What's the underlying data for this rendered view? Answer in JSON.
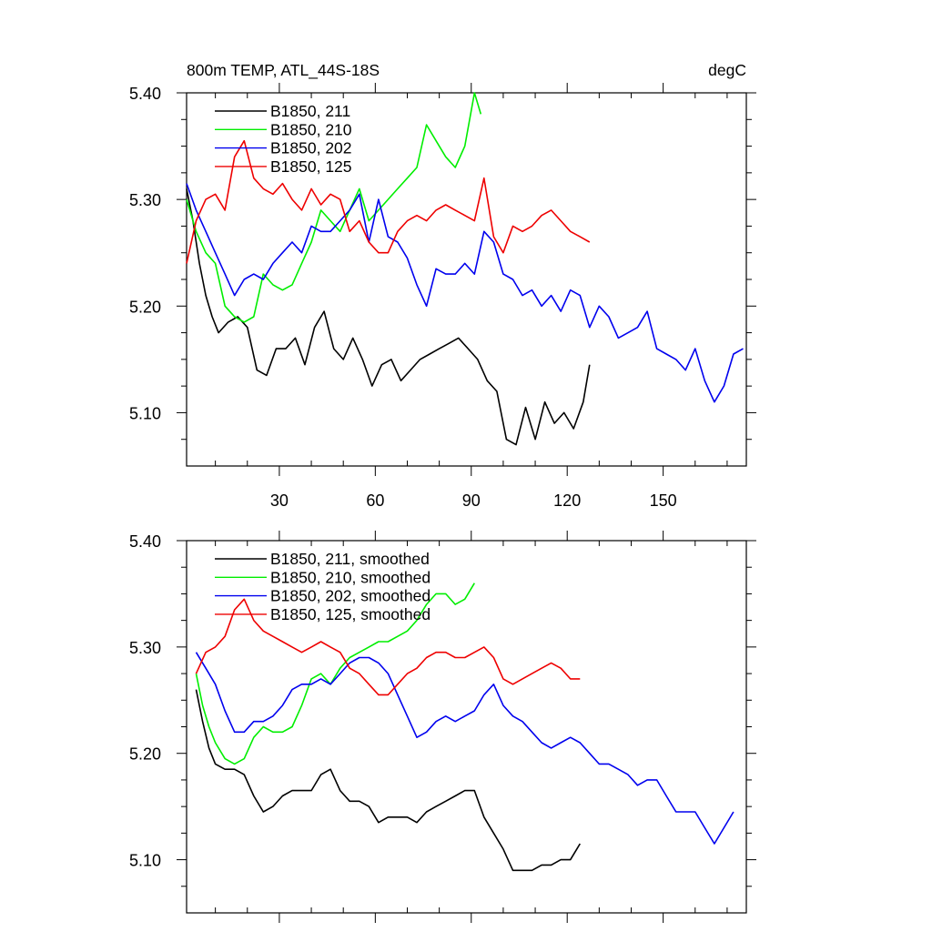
{
  "figure": {
    "title": "800m TEMP, ATL_44S-18S",
    "units": "degC"
  },
  "chart_data": [
    {
      "type": "line",
      "panel": "top",
      "title": "800m TEMP, ATL_44S-18S",
      "units": "degC",
      "xlim": [
        1,
        176
      ],
      "ylim": [
        5.05,
        5.4
      ],
      "xticks": [
        30,
        60,
        90,
        120,
        150
      ],
      "xtick_labels": [
        "30",
        "60",
        "90",
        "120",
        "150"
      ],
      "yticks": [
        5.1,
        5.2,
        5.3,
        5.4
      ],
      "ytick_labels": [
        "5.10",
        "5.20",
        "5.30",
        "5.40"
      ],
      "legend_position": "top-left",
      "series": [
        {
          "name": "B1850, 211",
          "color": "#000000",
          "x": [
            1,
            3,
            5,
            7,
            9,
            11,
            14,
            17,
            20,
            23,
            26,
            29,
            32,
            35,
            38,
            41,
            44,
            47,
            50,
            53,
            56,
            59,
            62,
            65,
            68,
            71,
            74,
            77,
            80,
            83,
            86,
            89,
            92,
            95,
            98,
            101,
            104,
            107,
            110,
            113,
            116,
            119,
            122,
            125,
            127
          ],
          "y": [
            5.31,
            5.28,
            5.24,
            5.21,
            5.19,
            5.175,
            5.185,
            5.19,
            5.18,
            5.14,
            5.135,
            5.16,
            5.16,
            5.17,
            5.145,
            5.18,
            5.195,
            5.16,
            5.15,
            5.17,
            5.15,
            5.125,
            5.145,
            5.15,
            5.13,
            5.14,
            5.15,
            5.155,
            5.16,
            5.165,
            5.17,
            5.16,
            5.15,
            5.13,
            5.12,
            5.075,
            5.07,
            5.105,
            5.075,
            5.11,
            5.09,
            5.1,
            5.085,
            5.11,
            5.145
          ]
        },
        {
          "name": "B1850, 210",
          "color": "#00ee00",
          "x": [
            1,
            4,
            7,
            10,
            13,
            16,
            19,
            22,
            25,
            28,
            31,
            34,
            37,
            40,
            43,
            46,
            49,
            52,
            55,
            58,
            61,
            64,
            67,
            70,
            73,
            76,
            79,
            82,
            85,
            88,
            91,
            93
          ],
          "y": [
            5.3,
            5.27,
            5.25,
            5.24,
            5.2,
            5.19,
            5.185,
            5.19,
            5.23,
            5.22,
            5.215,
            5.22,
            5.24,
            5.26,
            5.29,
            5.28,
            5.27,
            5.29,
            5.31,
            5.28,
            5.29,
            5.3,
            5.31,
            5.32,
            5.33,
            5.37,
            5.355,
            5.34,
            5.33,
            5.35,
            5.4,
            5.38
          ]
        },
        {
          "name": "B1850, 202",
          "color": "#0000ee",
          "x": [
            1,
            4,
            7,
            10,
            13,
            16,
            19,
            22,
            25,
            28,
            31,
            34,
            37,
            40,
            43,
            46,
            49,
            52,
            55,
            58,
            61,
            64,
            67,
            70,
            73,
            76,
            79,
            82,
            85,
            88,
            91,
            94,
            97,
            100,
            103,
            106,
            109,
            112,
            115,
            118,
            121,
            124,
            127,
            130,
            133,
            136,
            139,
            142,
            145,
            148,
            151,
            154,
            157,
            160,
            163,
            166,
            169,
            172,
            175
          ],
          "y": [
            5.315,
            5.29,
            5.27,
            5.25,
            5.23,
            5.21,
            5.225,
            5.23,
            5.225,
            5.24,
            5.25,
            5.26,
            5.25,
            5.275,
            5.27,
            5.27,
            5.28,
            5.29,
            5.305,
            5.26,
            5.3,
            5.265,
            5.26,
            5.245,
            5.22,
            5.2,
            5.235,
            5.23,
            5.23,
            5.24,
            5.23,
            5.27,
            5.26,
            5.23,
            5.225,
            5.21,
            5.215,
            5.2,
            5.21,
            5.195,
            5.215,
            5.21,
            5.18,
            5.2,
            5.19,
            5.17,
            5.175,
            5.18,
            5.195,
            5.16,
            5.155,
            5.15,
            5.14,
            5.16,
            5.13,
            5.11,
            5.125,
            5.155,
            5.16
          ]
        },
        {
          "name": "B1850, 125",
          "color": "#ee0000",
          "x": [
            1,
            4,
            7,
            10,
            13,
            16,
            19,
            22,
            25,
            28,
            31,
            34,
            37,
            40,
            43,
            46,
            49,
            52,
            55,
            58,
            61,
            64,
            67,
            70,
            73,
            76,
            79,
            82,
            85,
            88,
            91,
            94,
            97,
            100,
            103,
            106,
            109,
            112,
            115,
            118,
            121,
            124,
            127
          ],
          "y": [
            5.24,
            5.28,
            5.3,
            5.305,
            5.29,
            5.34,
            5.355,
            5.32,
            5.31,
            5.305,
            5.315,
            5.3,
            5.29,
            5.31,
            5.295,
            5.305,
            5.3,
            5.27,
            5.28,
            5.26,
            5.25,
            5.25,
            5.27,
            5.28,
            5.285,
            5.28,
            5.29,
            5.295,
            5.29,
            5.285,
            5.28,
            5.32,
            5.265,
            5.25,
            5.275,
            5.27,
            5.275,
            5.285,
            5.29,
            5.28,
            5.27,
            5.265,
            5.26
          ]
        }
      ]
    },
    {
      "type": "line",
      "panel": "bottom",
      "xlim": [
        1,
        176
      ],
      "ylim": [
        5.05,
        5.4
      ],
      "xticks": [
        30,
        60,
        90,
        120,
        150
      ],
      "xtick_labels": [],
      "yticks": [
        5.1,
        5.2,
        5.3,
        5.4
      ],
      "ytick_labels": [
        "5.10",
        "5.20",
        "5.30",
        "5.40"
      ],
      "legend_position": "top-left",
      "series": [
        {
          "name": "B1850, 211, smoothed",
          "color": "#000000",
          "x": [
            4,
            6,
            8,
            10,
            13,
            16,
            19,
            22,
            25,
            28,
            31,
            34,
            37,
            40,
            43,
            46,
            49,
            52,
            55,
            58,
            61,
            64,
            67,
            70,
            73,
            76,
            79,
            82,
            85,
            88,
            91,
            94,
            97,
            100,
            103,
            106,
            109,
            112,
            115,
            118,
            121,
            124
          ],
          "y": [
            5.26,
            5.23,
            5.205,
            5.19,
            5.185,
            5.185,
            5.18,
            5.16,
            5.145,
            5.15,
            5.16,
            5.165,
            5.165,
            5.165,
            5.18,
            5.185,
            5.165,
            5.155,
            5.155,
            5.15,
            5.135,
            5.14,
            5.14,
            5.14,
            5.135,
            5.145,
            5.15,
            5.155,
            5.16,
            5.165,
            5.165,
            5.14,
            5.125,
            5.11,
            5.09,
            5.09,
            5.09,
            5.095,
            5.095,
            5.1,
            5.1,
            5.115
          ]
        },
        {
          "name": "B1850, 210, smoothed",
          "color": "#00ee00",
          "x": [
            4,
            6,
            8,
            10,
            13,
            16,
            19,
            22,
            25,
            28,
            31,
            34,
            37,
            40,
            43,
            46,
            49,
            52,
            55,
            58,
            61,
            64,
            67,
            70,
            73,
            76,
            79,
            82,
            85,
            88,
            91
          ],
          "y": [
            5.275,
            5.245,
            5.225,
            5.21,
            5.195,
            5.19,
            5.195,
            5.215,
            5.225,
            5.22,
            5.22,
            5.225,
            5.245,
            5.27,
            5.275,
            5.265,
            5.28,
            5.29,
            5.295,
            5.3,
            5.305,
            5.305,
            5.31,
            5.315,
            5.325,
            5.34,
            5.35,
            5.35,
            5.34,
            5.345,
            5.36
          ]
        },
        {
          "name": "B1850, 202, smoothed",
          "color": "#0000ee",
          "x": [
            4,
            7,
            10,
            13,
            16,
            19,
            22,
            25,
            28,
            31,
            34,
            37,
            40,
            43,
            46,
            49,
            52,
            55,
            58,
            61,
            64,
            67,
            70,
            73,
            76,
            79,
            82,
            85,
            88,
            91,
            94,
            97,
            100,
            103,
            106,
            109,
            112,
            115,
            118,
            121,
            124,
            127,
            130,
            133,
            136,
            139,
            142,
            145,
            148,
            151,
            154,
            157,
            160,
            163,
            166,
            169,
            172
          ],
          "y": [
            5.295,
            5.28,
            5.265,
            5.24,
            5.22,
            5.22,
            5.23,
            5.23,
            5.235,
            5.245,
            5.26,
            5.265,
            5.265,
            5.27,
            5.265,
            5.275,
            5.285,
            5.29,
            5.29,
            5.285,
            5.275,
            5.255,
            5.235,
            5.215,
            5.22,
            5.23,
            5.235,
            5.23,
            5.235,
            5.24,
            5.255,
            5.265,
            5.245,
            5.235,
            5.23,
            5.22,
            5.21,
            5.205,
            5.21,
            5.215,
            5.21,
            5.2,
            5.19,
            5.19,
            5.185,
            5.18,
            5.17,
            5.175,
            5.175,
            5.16,
            5.145,
            5.145,
            5.145,
            5.13,
            5.115,
            5.13,
            5.145
          ]
        },
        {
          "name": "B1850, 125, smoothed",
          "color": "#ee0000",
          "x": [
            4,
            7,
            10,
            13,
            16,
            19,
            22,
            25,
            28,
            31,
            34,
            37,
            40,
            43,
            46,
            49,
            52,
            55,
            58,
            61,
            64,
            67,
            70,
            73,
            76,
            79,
            82,
            85,
            88,
            91,
            94,
            97,
            100,
            103,
            106,
            109,
            112,
            115,
            118,
            121,
            124
          ],
          "y": [
            5.275,
            5.295,
            5.3,
            5.31,
            5.335,
            5.345,
            5.325,
            5.315,
            5.31,
            5.305,
            5.3,
            5.295,
            5.3,
            5.305,
            5.3,
            5.295,
            5.28,
            5.275,
            5.265,
            5.255,
            5.255,
            5.265,
            5.275,
            5.28,
            5.29,
            5.295,
            5.295,
            5.29,
            5.29,
            5.295,
            5.3,
            5.29,
            5.27,
            5.265,
            5.27,
            5.275,
            5.28,
            5.285,
            5.28,
            5.27,
            5.27
          ]
        }
      ]
    }
  ]
}
